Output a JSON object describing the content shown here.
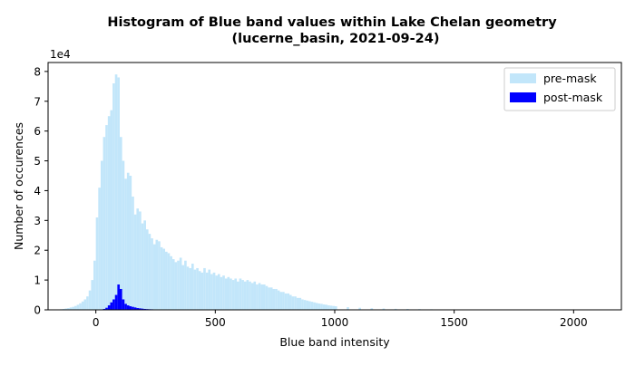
{
  "chart_data": {
    "type": "bar",
    "title_line1": "Histogram of Blue band values within Lake Chelan geometry",
    "title_line2": "(lucerne_basin, 2021-09-24)",
    "xlabel": "Blue band intensity",
    "ylabel": "Number of occurences",
    "y_multiplier_label": "1e4",
    "xlim": [
      -200,
      2200
    ],
    "ylim": [
      0,
      83000
    ],
    "x_ticks": [
      0,
      500,
      1000,
      1500,
      2000
    ],
    "x_tick_labels": [
      "0",
      "500",
      "1000",
      "1500",
      "2000"
    ],
    "y_ticks": [
      0,
      10000,
      20000,
      30000,
      40000,
      50000,
      60000,
      70000,
      80000
    ],
    "y_tick_labels": [
      "0",
      "1",
      "2",
      "3",
      "4",
      "5",
      "6",
      "7",
      "8"
    ],
    "bin_width": 10,
    "grid": false,
    "legend_position": "top-right",
    "series": [
      {
        "name": "pre-mask",
        "color": "#c2e6fa",
        "x": [
          -150,
          -140,
          -130,
          -120,
          -110,
          -100,
          -90,
          -80,
          -70,
          -60,
          -50,
          -40,
          -30,
          -20,
          -10,
          0,
          10,
          20,
          30,
          40,
          50,
          60,
          70,
          80,
          90,
          100,
          110,
          120,
          130,
          140,
          150,
          160,
          170,
          180,
          190,
          200,
          210,
          220,
          230,
          240,
          250,
          260,
          270,
          280,
          290,
          300,
          310,
          320,
          330,
          340,
          350,
          360,
          370,
          380,
          390,
          400,
          410,
          420,
          430,
          440,
          450,
          460,
          470,
          480,
          490,
          500,
          510,
          520,
          530,
          540,
          550,
          560,
          570,
          580,
          590,
          600,
          610,
          620,
          630,
          640,
          650,
          660,
          670,
          680,
          690,
          700,
          710,
          720,
          730,
          740,
          750,
          760,
          770,
          780,
          790,
          800,
          810,
          820,
          830,
          840,
          850,
          860,
          870,
          880,
          890,
          900,
          910,
          920,
          930,
          940,
          950,
          960,
          970,
          980,
          990,
          1000,
          1050,
          1100,
          1150,
          1200,
          1250,
          1300,
          1350,
          1400,
          1450,
          1500,
          1550,
          1600,
          1650,
          1700,
          1750,
          1800,
          1850,
          1900,
          1950,
          2000,
          2050
        ],
        "values": [
          200,
          300,
          450,
          600,
          800,
          1000,
          1300,
          1700,
          2200,
          2800,
          3500,
          4500,
          6500,
          10000,
          16500,
          31000,
          41000,
          50000,
          58000,
          62000,
          65000,
          67000,
          76000,
          79000,
          78000,
          58000,
          50000,
          44000,
          46000,
          45000,
          38000,
          32000,
          34000,
          33000,
          29000,
          30000,
          27000,
          25500,
          24000,
          22000,
          23500,
          23000,
          21000,
          20500,
          19500,
          19000,
          18000,
          17000,
          16000,
          16500,
          17500,
          15000,
          16500,
          14500,
          14000,
          15500,
          13500,
          14000,
          13000,
          12500,
          14000,
          12500,
          13500,
          12000,
          12500,
          11500,
          12000,
          11000,
          11500,
          10500,
          11000,
          10500,
          10000,
          10500,
          9500,
          10500,
          10000,
          9500,
          10000,
          9500,
          9000,
          9500,
          8500,
          9000,
          8500,
          8500,
          8000,
          7500,
          7500,
          7000,
          7000,
          6500,
          6000,
          6000,
          5500,
          5500,
          5000,
          4500,
          4500,
          4000,
          4000,
          3500,
          3300,
          3100,
          2900,
          2700,
          2500,
          2300,
          2100,
          2000,
          1800,
          1700,
          1500,
          1400,
          1300,
          1200,
          900,
          700,
          550,
          450,
          350,
          300,
          250,
          200,
          150,
          130,
          110,
          100,
          80,
          60,
          40,
          30,
          20,
          15,
          10,
          5,
          3
        ]
      },
      {
        "name": "post-mask",
        "color": "#0000ff",
        "x": [
          20,
          30,
          40,
          50,
          60,
          70,
          80,
          90,
          100,
          110,
          120,
          130,
          140,
          150,
          160,
          170,
          180,
          190,
          200,
          210,
          220,
          230,
          240,
          250,
          260,
          270,
          280,
          290
        ],
        "values": [
          100,
          300,
          700,
          1500,
          2500,
          3500,
          5000,
          8500,
          7000,
          3500,
          2000,
          1500,
          1200,
          1000,
          800,
          600,
          500,
          400,
          300,
          250,
          200,
          180,
          150,
          120,
          100,
          80,
          60,
          40
        ]
      }
    ]
  }
}
